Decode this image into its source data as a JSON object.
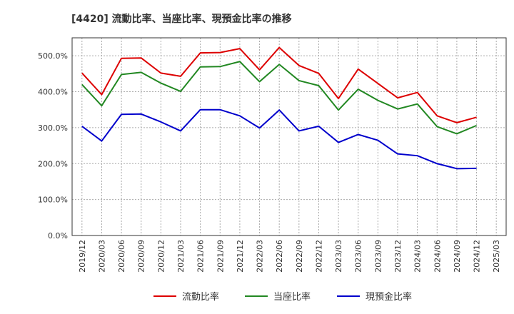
{
  "chart_data": {
    "type": "line",
    "title": "[4420]  流動比率、当座比率、現預金比率の推移",
    "xlabel": "",
    "ylabel": "",
    "ylim": [
      0,
      550
    ],
    "yticks": [
      0,
      100,
      200,
      300,
      400,
      500
    ],
    "ytick_labels": [
      "0.0%",
      "100.0%",
      "200.0%",
      "300.0%",
      "400.0%",
      "500.0%"
    ],
    "x": [
      "2019/12",
      "2020/03",
      "2020/06",
      "2020/09",
      "2020/12",
      "2021/03",
      "2021/06",
      "2021/09",
      "2021/12",
      "2022/03",
      "2022/06",
      "2022/09",
      "2022/12",
      "2023/03",
      "2023/06",
      "2023/09",
      "2023/12",
      "2024/03",
      "2024/06",
      "2024/09",
      "2024/12",
      "2025/03"
    ],
    "grid": true,
    "legend_position": "bottom",
    "series": [
      {
        "name": "流動比率",
        "color": "#dd0000",
        "values": [
          452,
          392,
          493,
          494,
          452,
          443,
          508,
          509,
          520,
          461,
          523,
          473,
          451,
          381,
          463,
          423,
          383,
          398,
          333,
          314,
          329,
          null
        ]
      },
      {
        "name": "当座比率",
        "color": "#228822",
        "values": [
          420,
          361,
          448,
          454,
          424,
          401,
          469,
          470,
          484,
          428,
          476,
          431,
          417,
          349,
          407,
          376,
          352,
          366,
          303,
          283,
          306,
          null
        ]
      },
      {
        "name": "現預金比率",
        "color": "#0000cc",
        "values": [
          304,
          263,
          337,
          338,
          316,
          291,
          350,
          350,
          333,
          299,
          349,
          291,
          304,
          259,
          281,
          265,
          227,
          222,
          200,
          186,
          187,
          null
        ]
      }
    ]
  }
}
